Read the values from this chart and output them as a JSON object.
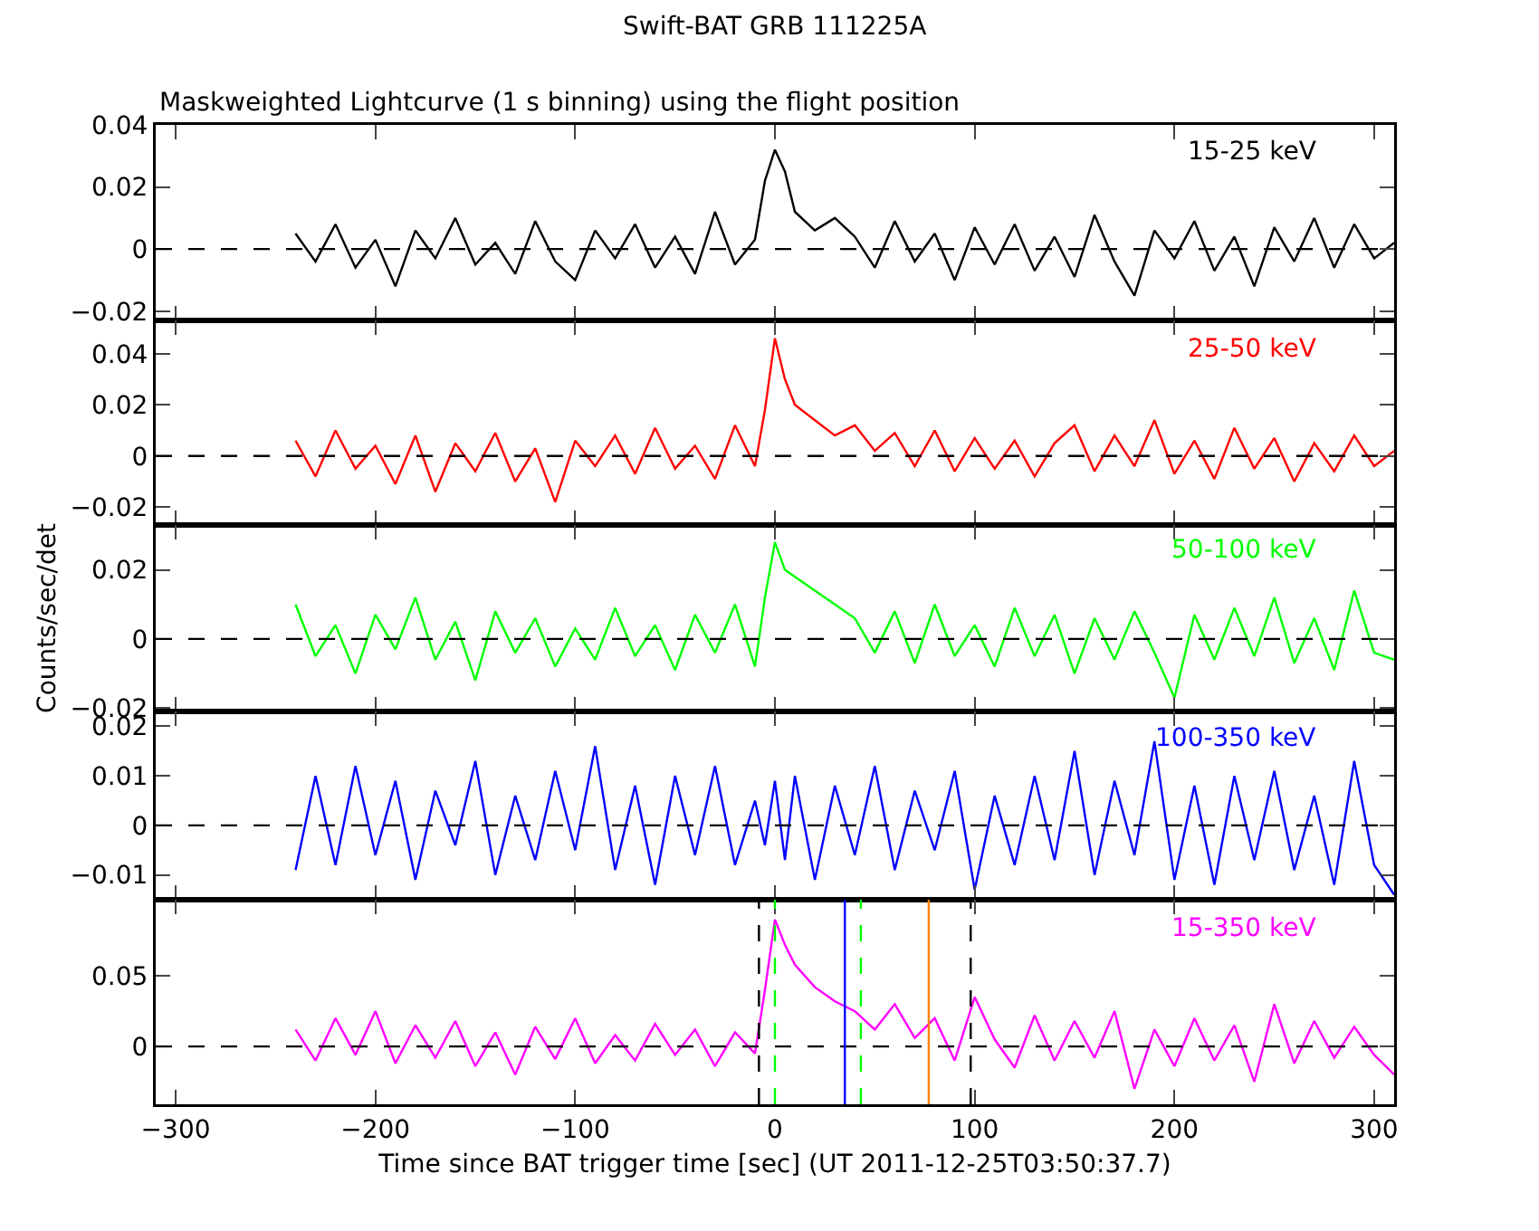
{
  "chart_data": [
    {
      "type": "line",
      "title": "Swift-BAT GRB 111225A",
      "subtitle": "Maskweighted Lightcurve (1 s binning) using the flight position",
      "x": [
        -240,
        -230,
        -220,
        -210,
        -200,
        -190,
        -180,
        -170,
        -160,
        -150,
        -140,
        -130,
        -120,
        -110,
        -100,
        -90,
        -80,
        -70,
        -60,
        -50,
        -40,
        -30,
        -20,
        -10,
        -5,
        0,
        5,
        10,
        20,
        30,
        40,
        50,
        60,
        70,
        80,
        90,
        100,
        110,
        120,
        130,
        140,
        150,
        160,
        170,
        180,
        190,
        200,
        210,
        220,
        230,
        240,
        250,
        260,
        270,
        280,
        290,
        300,
        310
      ],
      "series": [
        {
          "name": "15-25 keV",
          "color": "#000000",
          "values": [
            0.005,
            -0.004,
            0.008,
            -0.006,
            0.003,
            -0.012,
            0.006,
            -0.003,
            0.01,
            -0.005,
            0.002,
            -0.008,
            0.009,
            -0.004,
            -0.01,
            0.006,
            -0.003,
            0.008,
            -0.006,
            0.004,
            -0.008,
            0.012,
            -0.005,
            0.003,
            0.022,
            0.032,
            0.025,
            0.012,
            0.006,
            0.01,
            0.004,
            -0.006,
            0.009,
            -0.004,
            0.005,
            -0.01,
            0.007,
            -0.005,
            0.008,
            -0.007,
            0.004,
            -0.009,
            0.011,
            -0.004,
            -0.015,
            0.006,
            -0.003,
            0.009,
            -0.007,
            0.004,
            -0.012,
            0.007,
            -0.004,
            0.01,
            -0.006,
            0.008,
            -0.003,
            0.002
          ]
        }
      ],
      "xlim": [
        -310,
        310
      ],
      "xticks": [
        -300,
        -200,
        -100,
        0,
        100,
        200,
        300
      ],
      "ylim": [
        -0.023,
        0.04
      ],
      "yticks": [
        -0.02,
        0,
        0.02,
        0.04
      ],
      "tick_labels": "y",
      "grid": false,
      "ref_lines": [
        {
          "axis": "y",
          "value": 0,
          "color": "#000000",
          "line_style": "dashed"
        }
      ]
    },
    {
      "type": "line",
      "x": [
        -240,
        -230,
        -220,
        -210,
        -200,
        -190,
        -180,
        -170,
        -160,
        -150,
        -140,
        -130,
        -120,
        -110,
        -100,
        -90,
        -80,
        -70,
        -60,
        -50,
        -40,
        -30,
        -20,
        -10,
        -5,
        0,
        5,
        10,
        20,
        30,
        40,
        50,
        60,
        70,
        80,
        90,
        100,
        110,
        120,
        130,
        140,
        150,
        160,
        170,
        180,
        190,
        200,
        210,
        220,
        230,
        240,
        250,
        260,
        270,
        280,
        290,
        300,
        310
      ],
      "series": [
        {
          "name": "25-50 keV",
          "color": "#ff0000",
          "values": [
            0.006,
            -0.008,
            0.01,
            -0.005,
            0.004,
            -0.011,
            0.008,
            -0.014,
            0.005,
            -0.006,
            0.009,
            -0.01,
            0.003,
            -0.018,
            0.006,
            -0.004,
            0.008,
            -0.007,
            0.011,
            -0.005,
            0.004,
            -0.009,
            0.012,
            -0.004,
            0.018,
            0.046,
            0.03,
            0.02,
            0.014,
            0.008,
            0.012,
            0.002,
            0.009,
            -0.004,
            0.01,
            -0.006,
            0.007,
            -0.005,
            0.006,
            -0.008,
            0.005,
            0.012,
            -0.006,
            0.008,
            -0.004,
            0.014,
            -0.007,
            0.006,
            -0.009,
            0.011,
            -0.005,
            0.007,
            -0.01,
            0.005,
            -0.006,
            0.008,
            -0.004,
            0.002
          ]
        }
      ],
      "xlim": [
        -310,
        310
      ],
      "xticks": [
        -300,
        -200,
        -100,
        0,
        100,
        200,
        300
      ],
      "ylim": [
        -0.027,
        0.053
      ],
      "yticks": [
        -0.02,
        0,
        0.02,
        0.04
      ],
      "tick_labels": "y",
      "grid": false,
      "ref_lines": [
        {
          "axis": "y",
          "value": 0,
          "color": "#000000",
          "line_style": "dashed"
        }
      ]
    },
    {
      "type": "line",
      "ylabel": "Counts/sec/det",
      "x": [
        -240,
        -230,
        -220,
        -210,
        -200,
        -190,
        -180,
        -170,
        -160,
        -150,
        -140,
        -130,
        -120,
        -110,
        -100,
        -90,
        -80,
        -70,
        -60,
        -50,
        -40,
        -30,
        -20,
        -10,
        -5,
        0,
        5,
        10,
        20,
        30,
        40,
        50,
        60,
        70,
        80,
        90,
        100,
        110,
        120,
        130,
        140,
        150,
        160,
        170,
        180,
        190,
        200,
        210,
        220,
        230,
        240,
        250,
        260,
        270,
        280,
        290,
        300,
        310
      ],
      "series": [
        {
          "name": "50-100 keV",
          "color": "#00ff00",
          "values": [
            0.01,
            -0.005,
            0.004,
            -0.01,
            0.007,
            -0.003,
            0.012,
            -0.006,
            0.005,
            -0.012,
            0.008,
            -0.004,
            0.006,
            -0.008,
            0.003,
            -0.006,
            0.009,
            -0.005,
            0.004,
            -0.009,
            0.007,
            -0.004,
            0.01,
            -0.008,
            0.012,
            0.028,
            0.02,
            0.018,
            0.014,
            0.01,
            0.006,
            -0.004,
            0.008,
            -0.007,
            0.01,
            -0.005,
            0.004,
            -0.008,
            0.009,
            -0.005,
            0.007,
            -0.01,
            0.006,
            -0.006,
            0.008,
            -0.004,
            -0.017,
            0.007,
            -0.006,
            0.009,
            -0.005,
            0.012,
            -0.007,
            0.006,
            -0.009,
            0.014,
            -0.004,
            -0.006
          ]
        }
      ],
      "xlim": [
        -310,
        310
      ],
      "xticks": [
        -300,
        -200,
        -100,
        0,
        100,
        200,
        300
      ],
      "ylim": [
        -0.021,
        0.033
      ],
      "yticks": [
        -0.02,
        0,
        0.02
      ],
      "tick_labels": "y",
      "grid": false,
      "ref_lines": [
        {
          "axis": "y",
          "value": 0,
          "color": "#000000",
          "line_style": "dashed"
        }
      ]
    },
    {
      "type": "line",
      "x": [
        -240,
        -230,
        -220,
        -210,
        -200,
        -190,
        -180,
        -170,
        -160,
        -150,
        -140,
        -130,
        -120,
        -110,
        -100,
        -90,
        -80,
        -70,
        -60,
        -50,
        -40,
        -30,
        -20,
        -10,
        -5,
        0,
        5,
        10,
        20,
        30,
        40,
        50,
        60,
        70,
        80,
        90,
        100,
        110,
        120,
        130,
        140,
        150,
        160,
        170,
        180,
        190,
        200,
        210,
        220,
        230,
        240,
        250,
        260,
        270,
        280,
        290,
        300,
        310
      ],
      "series": [
        {
          "name": "100-350 keV",
          "color": "#0000ff",
          "values": [
            -0.009,
            0.01,
            -0.008,
            0.012,
            -0.006,
            0.009,
            -0.011,
            0.007,
            -0.004,
            0.013,
            -0.01,
            0.006,
            -0.007,
            0.011,
            -0.005,
            0.016,
            -0.009,
            0.008,
            -0.012,
            0.01,
            -0.006,
            0.012,
            -0.008,
            0.005,
            -0.004,
            0.009,
            -0.007,
            0.01,
            -0.011,
            0.008,
            -0.006,
            0.012,
            -0.009,
            0.007,
            -0.005,
            0.011,
            -0.013,
            0.006,
            -0.008,
            0.01,
            -0.007,
            0.015,
            -0.01,
            0.009,
            -0.006,
            0.017,
            -0.011,
            0.008,
            -0.012,
            0.01,
            -0.007,
            0.011,
            -0.009,
            0.006,
            -0.012,
            0.013,
            -0.008,
            -0.014
          ]
        }
      ],
      "xlim": [
        -310,
        310
      ],
      "xticks": [
        -300,
        -200,
        -100,
        0,
        100,
        200,
        300
      ],
      "ylim": [
        -0.015,
        0.023
      ],
      "yticks": [
        -0.01,
        0,
        0.01,
        0.02
      ],
      "tick_labels": "y",
      "grid": false,
      "ref_lines": [
        {
          "axis": "y",
          "value": 0,
          "color": "#000000",
          "line_style": "dashed"
        }
      ]
    },
    {
      "type": "line",
      "xlabel": "Time since BAT trigger time [sec] (UT 2011-12-25T03:50:37.7)",
      "x": [
        -240,
        -230,
        -220,
        -210,
        -200,
        -190,
        -180,
        -170,
        -160,
        -150,
        -140,
        -130,
        -120,
        -110,
        -100,
        -90,
        -80,
        -70,
        -60,
        -50,
        -40,
        -30,
        -20,
        -10,
        -5,
        0,
        5,
        10,
        20,
        30,
        40,
        50,
        60,
        70,
        80,
        90,
        100,
        110,
        120,
        130,
        140,
        150,
        160,
        170,
        180,
        190,
        200,
        210,
        220,
        230,
        240,
        250,
        260,
        270,
        280,
        290,
        300,
        310
      ],
      "series": [
        {
          "name": "15-350 keV",
          "color": "#ff00ff",
          "values": [
            0.012,
            -0.01,
            0.02,
            -0.006,
            0.025,
            -0.012,
            0.015,
            -0.008,
            0.018,
            -0.014,
            0.01,
            -0.02,
            0.014,
            -0.009,
            0.02,
            -0.012,
            0.008,
            -0.01,
            0.016,
            -0.006,
            0.012,
            -0.014,
            0.01,
            -0.005,
            0.04,
            0.09,
            0.072,
            0.058,
            0.042,
            0.032,
            0.025,
            0.012,
            0.03,
            0.006,
            0.02,
            -0.01,
            0.035,
            0.005,
            -0.015,
            0.022,
            -0.01,
            0.018,
            -0.008,
            0.025,
            -0.03,
            0.012,
            -0.014,
            0.02,
            -0.01,
            0.015,
            -0.025,
            0.03,
            -0.012,
            0.018,
            -0.008,
            0.014,
            -0.006,
            -0.02
          ]
        }
      ],
      "xlim": [
        -310,
        310
      ],
      "xticks": [
        -300,
        -200,
        -100,
        0,
        100,
        200,
        300
      ],
      "ylim": [
        -0.041,
        0.104
      ],
      "yticks": [
        0,
        0.05
      ],
      "grid": false,
      "ref_lines": [
        {
          "axis": "y",
          "value": 0,
          "color": "#000000",
          "line_style": "dashed"
        },
        {
          "axis": "x",
          "value": -8,
          "color": "#000000",
          "line_style": "dashed"
        },
        {
          "axis": "x",
          "value": 98,
          "color": "#000000",
          "line_style": "dashed"
        },
        {
          "axis": "x",
          "value": 0,
          "color": "#00ff00",
          "line_style": "dashed"
        },
        {
          "axis": "x",
          "value": 43,
          "color": "#00ff00",
          "line_style": "dashed"
        },
        {
          "axis": "x",
          "value": 35,
          "color": "#0000ff",
          "line_style": "solid"
        },
        {
          "axis": "x",
          "value": 77,
          "color": "#ff8000",
          "line_style": "solid"
        }
      ]
    }
  ]
}
